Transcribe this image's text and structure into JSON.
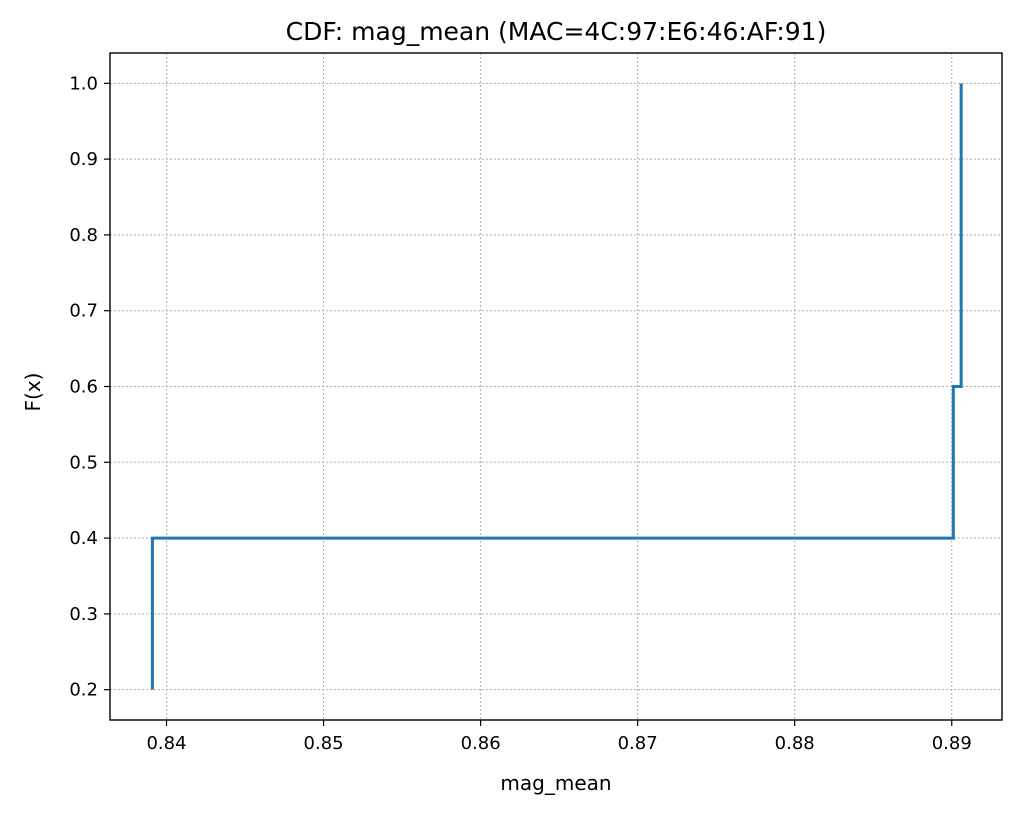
{
  "chart_data": {
    "type": "line",
    "drawstyle": "steps-post",
    "title": "CDF: mag_mean (MAC=4C:97:E6:46:AF:91)",
    "xlabel": "mag_mean",
    "ylabel": "F(x)",
    "xlim": [
      0.8364,
      0.8932
    ],
    "ylim": [
      0.16,
      1.04
    ],
    "grid": true,
    "x_ticks": [
      0.84,
      0.85,
      0.86,
      0.87,
      0.88,
      0.89
    ],
    "x_tick_labels": [
      "0.84",
      "0.85",
      "0.86",
      "0.87",
      "0.88",
      "0.89"
    ],
    "y_ticks": [
      0.2,
      0.3,
      0.4,
      0.5,
      0.6,
      0.7,
      0.8,
      0.9,
      1.0
    ],
    "y_tick_labels": [
      "0.2",
      "0.3",
      "0.4",
      "0.5",
      "0.6",
      "0.7",
      "0.8",
      "0.9",
      "1.0"
    ],
    "series": [
      {
        "color": "#1f77b4",
        "x": [
          0.8391,
          0.8391,
          0.8901,
          0.8906
        ],
        "y": [
          0.2,
          0.4,
          0.6,
          1.0
        ]
      }
    ]
  }
}
